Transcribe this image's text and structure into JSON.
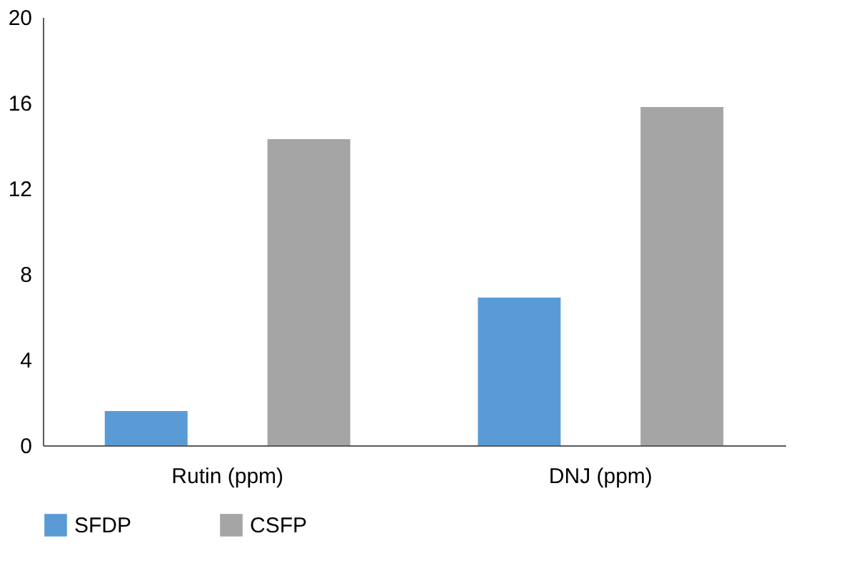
{
  "chart_data": {
    "type": "bar",
    "categories": [
      "Rutin (ppm)",
      "DNJ (ppm)"
    ],
    "series": [
      {
        "name": "SFDP",
        "color": "#5b9bd5",
        "values": [
          1.6,
          6.9
        ]
      },
      {
        "name": "CSFP",
        "color": "#a5a5a5",
        "values": [
          14.3,
          15.8
        ]
      }
    ],
    "ylim": [
      0,
      20
    ],
    "yticks": [
      0,
      4,
      8,
      12,
      16,
      20
    ],
    "grid": false,
    "legend": "bottom"
  }
}
